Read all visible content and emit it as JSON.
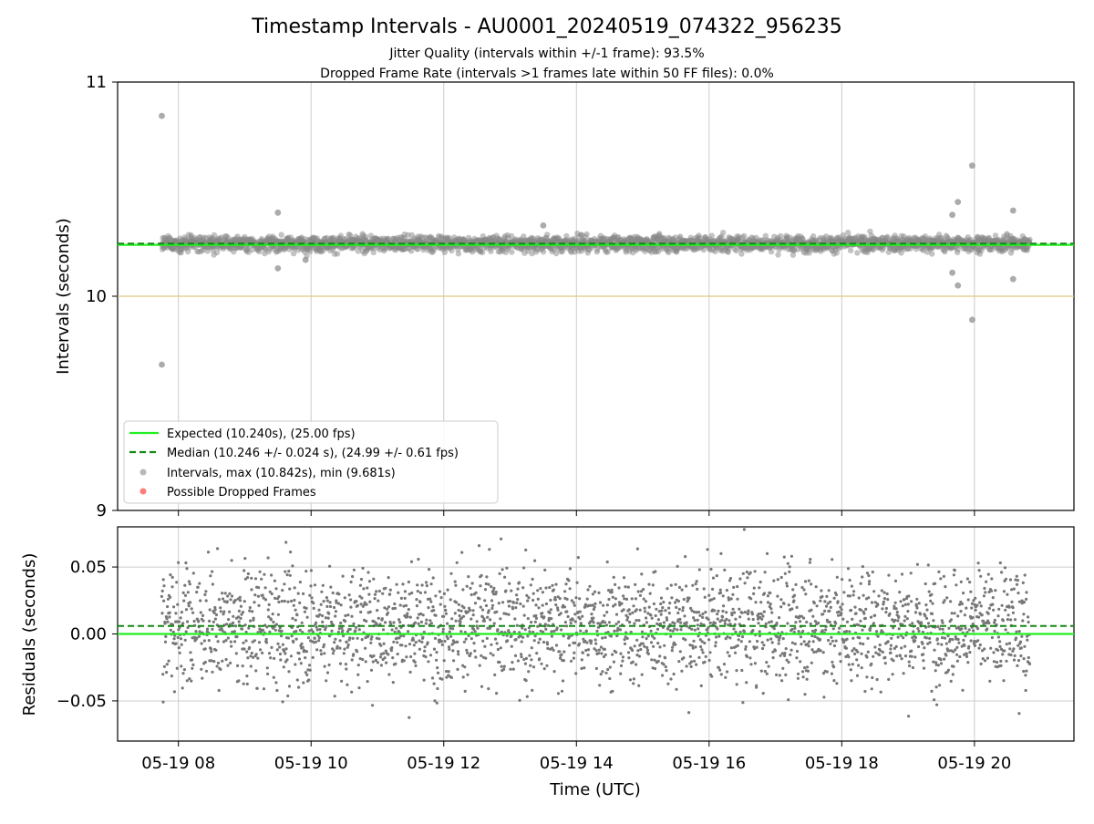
{
  "chart_data": [
    {
      "type": "scatter",
      "title": "Timestamp Intervals - AU0001_20240519_074322_956235",
      "subtitle_lines": [
        "Jitter Quality (intervals within +/-1 frame): 93.5%",
        "Dropped Frame Rate (intervals >1 frames late within 50 FF files): 0.0%"
      ],
      "xlabel": "",
      "ylabel": "Intervals (seconds)",
      "ylim": [
        9,
        11
      ],
      "y_ticks": [
        9,
        10,
        11
      ],
      "y_tick_labels": [
        "9",
        "10",
        "11"
      ],
      "x_range_hours": [
        "2024-05-19 07:05",
        "2024-05-19 21:30"
      ],
      "x_ticks": [
        "2024-05-19 08:00",
        "2024-05-19 10:00",
        "2024-05-19 12:00",
        "2024-05-19 14:00",
        "2024-05-19 16:00",
        "2024-05-19 18:00",
        "2024-05-19 20:00"
      ],
      "grid": "x",
      "reference_lines": [
        {
          "name": "Expected (10.240s), (25.00 fps)",
          "y": 10.24,
          "color": "#22ee22",
          "style": "solid"
        },
        {
          "name": "Median (10.246 +/- 0.024 s), (24.99 +/- 0.61 fps)",
          "y": 10.246,
          "color": "#118811",
          "style": "dashed"
        },
        {
          "name": "",
          "y": 10.0,
          "color": "#e0c880",
          "style": "solid"
        }
      ],
      "series": [
        {
          "name": "Intervals, max (10.842s), min (9.681s)",
          "color": "#888888",
          "marker": "circle"
        },
        {
          "name": "Possible Dropped Frames",
          "color": "#ff6666",
          "marker": "circle"
        }
      ],
      "band": {
        "center": 10.246,
        "spread": 0.024
      },
      "outliers": [
        {
          "x": "2024-05-19 07:45",
          "y": 10.842
        },
        {
          "x": "2024-05-19 07:45",
          "y": 9.681
        },
        {
          "x": "2024-05-19 09:30",
          "y": 10.39
        },
        {
          "x": "2024-05-19 09:30",
          "y": 10.13
        },
        {
          "x": "2024-05-19 09:55",
          "y": 10.17
        },
        {
          "x": "2024-05-19 13:30",
          "y": 10.33
        },
        {
          "x": "2024-05-19 19:40",
          "y": 10.38
        },
        {
          "x": "2024-05-19 19:45",
          "y": 10.44
        },
        {
          "x": "2024-05-19 19:40",
          "y": 10.11
        },
        {
          "x": "2024-05-19 19:45",
          "y": 10.05
        },
        {
          "x": "2024-05-19 19:58",
          "y": 10.61
        },
        {
          "x": "2024-05-19 19:58",
          "y": 9.89
        },
        {
          "x": "2024-05-19 20:35",
          "y": 10.4
        },
        {
          "x": "2024-05-19 20:35",
          "y": 10.08
        }
      ],
      "legend": "lower-left"
    },
    {
      "type": "scatter",
      "title": "",
      "xlabel": "Time (UTC)",
      "ylabel": "Residuals (seconds)",
      "ylim": [
        -0.08,
        0.08
      ],
      "y_ticks": [
        -0.05,
        0.0,
        0.05
      ],
      "y_tick_labels": [
        "−0.05",
        "0.00",
        "0.05"
      ],
      "x_tick_labels": [
        "05-19 08",
        "05-19 10",
        "05-19 12",
        "05-19 14",
        "05-19 16",
        "05-19 18",
        "05-19 20"
      ],
      "grid": "both",
      "reference_lines": [
        {
          "name": "",
          "y": 0.0,
          "color": "#22ee22",
          "style": "solid"
        },
        {
          "name": "",
          "y": 0.006,
          "color": "#118811",
          "style": "dashed"
        }
      ],
      "series": [
        {
          "name": "",
          "color": "#777777",
          "marker": "dot"
        }
      ],
      "band": {
        "center": 0.006,
        "spread": 0.024
      }
    }
  ]
}
